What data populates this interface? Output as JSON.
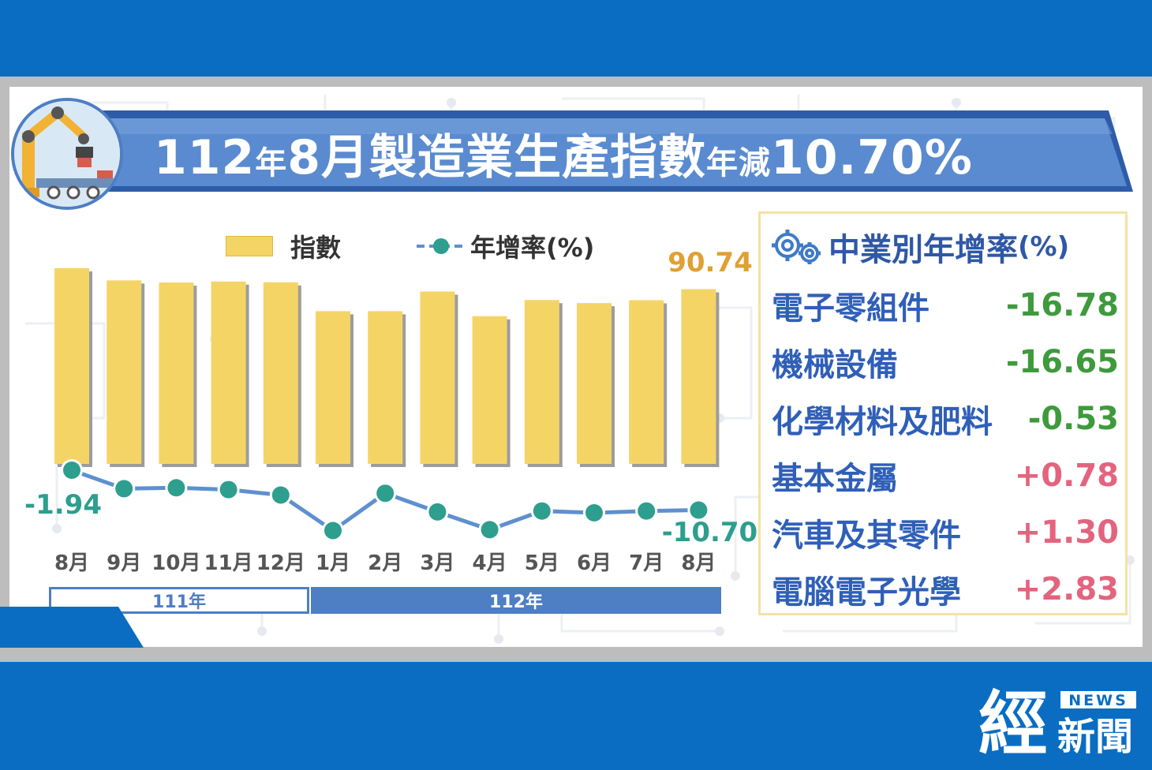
{
  "header": {
    "title_parts": [
      "112",
      "年",
      "8月",
      "製造業生產指數",
      "年減",
      "10.70%"
    ]
  },
  "legend": {
    "index_label": "指數",
    "growth_label": "年增率(%)"
  },
  "chart_data": {
    "type": "bar+line",
    "categories": [
      "8月",
      "9月",
      "10月",
      "11月",
      "12月",
      "1月",
      "2月",
      "3月",
      "4月",
      "5月",
      "6月",
      "7月",
      "8月"
    ],
    "series": [
      {
        "name": "指數",
        "type": "bar",
        "values": [
          101.6,
          95.3,
          94.2,
          94.7,
          94.3,
          79.3,
          79.3,
          89.5,
          76.7,
          85.1,
          83.5,
          85.0,
          90.74
        ]
      },
      {
        "name": "年增率(%)",
        "type": "line",
        "values": [
          -1.94,
          -6.0,
          -5.8,
          -6.2,
          -7.4,
          -15.2,
          -7.0,
          -11.1,
          -15.0,
          -10.9,
          -11.3,
          -10.9,
          -10.7
        ]
      }
    ],
    "annotations": {
      "first_rate": "-1.94",
      "last_rate": "-10.70",
      "last_index": "90.74"
    },
    "colors": {
      "bar": "#F5D466",
      "bar_shadow": "#9C9C9C",
      "line": "#5E90D0",
      "marker": "#2E9E8E",
      "index_label": "#E0A032",
      "rate_label": "#2E9E8E"
    },
    "year_groups": [
      {
        "label": "111年",
        "span": 5
      },
      {
        "label": "112年",
        "span": 8
      }
    ]
  },
  "industry_panel": {
    "title": "中業別年增率",
    "unit": "(%)",
    "icon": "gears-icon",
    "items": [
      {
        "name": "電子零組件",
        "value": "-16.78",
        "sign": "neg"
      },
      {
        "name": "機械設備",
        "value": "-16.65",
        "sign": "neg"
      },
      {
        "name": "化學材料及肥料",
        "value": "-0.53",
        "sign": "neg"
      },
      {
        "name": "基本金屬",
        "value": "+0.78",
        "sign": "pos"
      },
      {
        "name": "汽車及其零件",
        "value": "+1.30",
        "sign": "pos"
      },
      {
        "name": "電腦電子光學",
        "value": "+2.83",
        "sign": "pos"
      }
    ]
  },
  "watermark": {
    "big_char": "經",
    "small_text": "新聞",
    "badge": "NEWS"
  },
  "colors": {
    "brand_blue": "#0A6DC2",
    "banner_blue": "#4E7EC4",
    "negative": "#3E9A3C",
    "positive": "#E3647E"
  }
}
